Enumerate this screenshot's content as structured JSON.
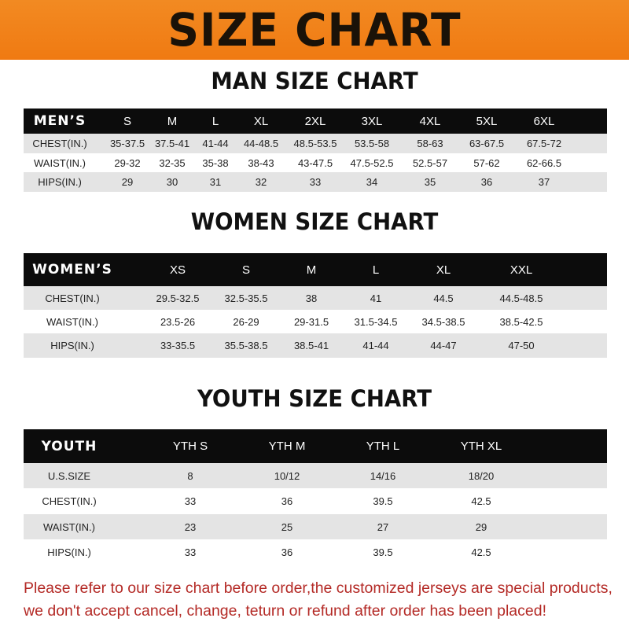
{
  "banner_title": "SIZE CHART",
  "men": {
    "title": "MAN SIZE CHART",
    "header": [
      "MEN’S",
      "S",
      "M",
      "L",
      "XL",
      "2XL",
      "3XL",
      "4XL",
      "5XL",
      "6XL"
    ],
    "rows": [
      [
        "CHEST(IN.)",
        "35-37.5",
        "37.5-41",
        "41-44",
        "44-48.5",
        "48.5-53.5",
        "53.5-58",
        "58-63",
        "63-67.5",
        "67.5-72"
      ],
      [
        "WAIST(IN.)",
        "29-32",
        "32-35",
        "35-38",
        "38-43",
        "43-47.5",
        "47.5-52.5",
        "52.5-57",
        "57-62",
        "62-66.5"
      ],
      [
        "HIPS(IN.)",
        "29",
        "30",
        "31",
        "32",
        "33",
        "34",
        "35",
        "36",
        "37"
      ]
    ]
  },
  "women": {
    "title": "WOMEN SIZE CHART",
    "header": [
      "WOMEN’S",
      "XS",
      "S",
      "M",
      "L",
      "XL",
      "XXL"
    ],
    "rows": [
      [
        "CHEST(IN.)",
        "29.5-32.5",
        "32.5-35.5",
        "38",
        "41",
        "44.5",
        "44.5-48.5"
      ],
      [
        "WAIST(IN.)",
        "23.5-26",
        "26-29",
        "29-31.5",
        "31.5-34.5",
        "34.5-38.5",
        "38.5-42.5"
      ],
      [
        "HIPS(IN.)",
        "33-35.5",
        "35.5-38.5",
        "38.5-41",
        "41-44",
        "44-47",
        "47-50"
      ]
    ]
  },
  "youth": {
    "title": "YOUTH SIZE CHART",
    "header": [
      "YOUTH",
      "YTH S",
      "YTH M",
      "YTH L",
      "YTH XL"
    ],
    "rows": [
      [
        "U.S.SIZE",
        "8",
        "10/12",
        "14/16",
        "18/20"
      ],
      [
        "CHEST(IN.)",
        "33",
        "36",
        "39.5",
        "42.5"
      ],
      [
        "WAIST(IN.)",
        "23",
        "25",
        "27",
        "29"
      ],
      [
        "HIPS(IN.)",
        "33",
        "36",
        "39.5",
        "42.5"
      ]
    ]
  },
  "note_line1": "Please refer to our size chart before order,the customized jerseys are special products,",
  "note_line2": "we don't accept cancel, change, teturn or refund after order has been placed!",
  "colors": {
    "banner": "#f07a12",
    "header_row": "#0c0c0c",
    "note": "#b42a26"
  }
}
